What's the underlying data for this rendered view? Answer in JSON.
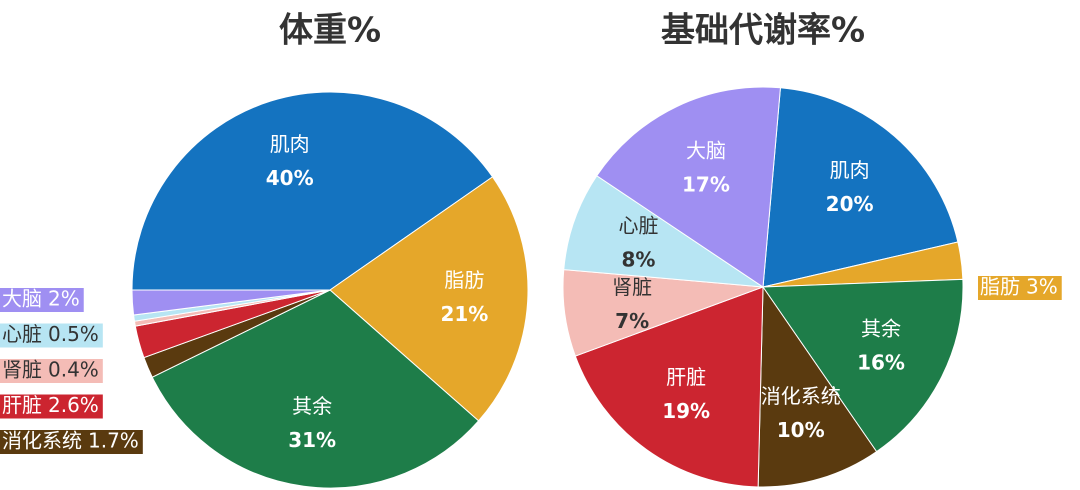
{
  "chart_data": [
    {
      "type": "pie",
      "title": "体重%",
      "categories": [
        "肌肉",
        "脂肪",
        "其余",
        "消化系统",
        "肝脏",
        "肾脏",
        "心脏",
        "大脑"
      ],
      "values": [
        40,
        21,
        31,
        1.7,
        2.6,
        0.4,
        0.5,
        2
      ],
      "value_labels": [
        "40%",
        "21%",
        "31%",
        "1.7%",
        "2.6%",
        "0.4%",
        "0.5%",
        "2%"
      ],
      "colors": [
        "#1473c0",
        "#e5a72a",
        "#1e7d49",
        "#5a3a0f",
        "#cc2530",
        "#f4bcb6",
        "#b7e5f3",
        "#9f8ff2"
      ]
    },
    {
      "type": "pie",
      "title": "基础代谢率%",
      "categories": [
        "肌肉",
        "脂肪",
        "其余",
        "消化系统",
        "肝脏",
        "肾脏",
        "心脏",
        "大脑"
      ],
      "values": [
        20,
        3,
        16,
        10,
        19,
        7,
        8,
        17
      ],
      "value_labels": [
        "20%",
        "3%",
        "16%",
        "10%",
        "19%",
        "7%",
        "8%",
        "17%"
      ],
      "colors": [
        "#1473c0",
        "#e5a72a",
        "#1e7d49",
        "#5a3a0f",
        "#cc2530",
        "#f4bcb6",
        "#b7e5f3",
        "#9f8ff2"
      ]
    }
  ]
}
